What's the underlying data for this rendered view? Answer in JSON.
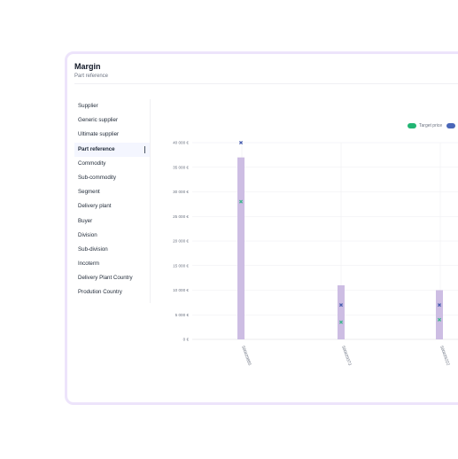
{
  "card": {
    "title": "Margin",
    "subtitle": "Part reference"
  },
  "sidebar": {
    "items": [
      {
        "label": "Supplier"
      },
      {
        "label": "Generic supplier"
      },
      {
        "label": "Ultimate supplier"
      },
      {
        "label": "Part reference",
        "active": true
      },
      {
        "label": "Commodity"
      },
      {
        "label": "Sub-commodity"
      },
      {
        "label": "Segment"
      },
      {
        "label": "Delivery plant"
      },
      {
        "label": "Buyer"
      },
      {
        "label": "Division"
      },
      {
        "label": "Sub-division"
      },
      {
        "label": "Incoterm"
      },
      {
        "label": "Delivery Plant Country"
      },
      {
        "label": "Prodution Country"
      }
    ]
  },
  "legend": {
    "target_label": "Target price",
    "target_color": "#22b573",
    "second_color": "#4a67b8"
  },
  "colors": {
    "bar": "#cdbde3",
    "target_marker": "#3fb58c",
    "second_marker": "#4a5fb0",
    "grid": "#eeeef2"
  },
  "chart_data": {
    "type": "bar",
    "categories": [
      "500029885",
      "500029373",
      "500026222"
    ],
    "series": [
      {
        "values": [
          37000,
          11000,
          10000
        ]
      },
      {
        "name": "Target price",
        "values": [
          28000,
          3500,
          4000
        ]
      },
      {
        "values": [
          40000,
          7000,
          7000
        ]
      }
    ],
    "ylim": [
      0,
      40000
    ],
    "yticks": [
      "0 €",
      "5 000 €",
      "10 000 €",
      "15 000 €",
      "20 000 €",
      "25 000 €",
      "30 000 €",
      "35 000 €",
      "40 000 €"
    ],
    "grid": true,
    "legend": "top-right"
  }
}
